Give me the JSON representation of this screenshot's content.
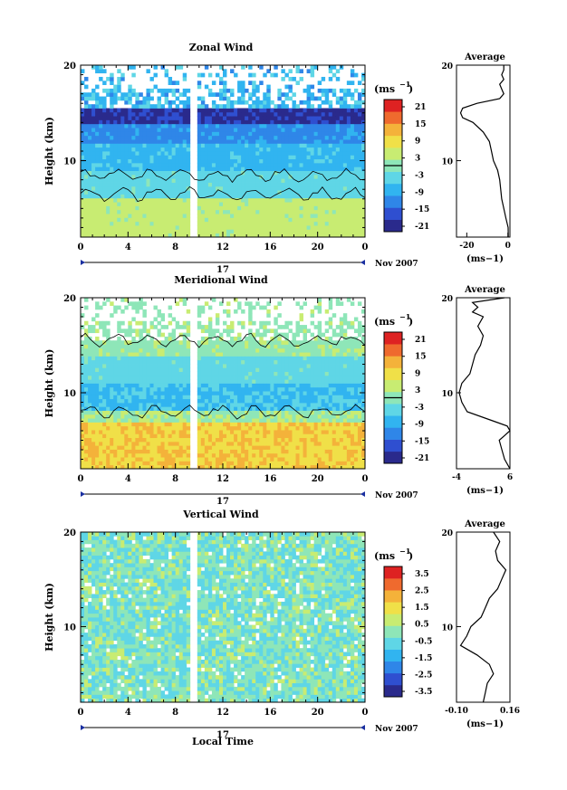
{
  "figure": {
    "date_label": "Nov 2007",
    "day_label": "17",
    "xlabel": "Local Time",
    "ylabel": "Height (km)",
    "unit_label": "(ms",
    "unit_exp": "−1"
  },
  "chart_data": [
    {
      "type": "heatmap",
      "title": "Zonal Wind",
      "xlabel": "",
      "ylabel": "Height (km)",
      "x_ticks": [
        "0",
        "4",
        "8",
        "12",
        "16",
        "20",
        "0"
      ],
      "y_ticks": [
        "20",
        "10"
      ],
      "xlim": [
        0,
        24
      ],
      "ylim": [
        2,
        20
      ],
      "colorbar": {
        "unit": "(ms−1)",
        "ticks": [
          "21",
          "15",
          "9",
          "3",
          "-3",
          "-9",
          "-15",
          "-21"
        ],
        "range": [
          -24,
          24
        ],
        "zero_line": true
      },
      "average_profile": {
        "title": "Average",
        "x_ticks": [
          "-20",
          "0"
        ],
        "xlim": [
          -25,
          1
        ],
        "xlabel": "(ms−1)",
        "y_ticks": [
          "20",
          "10"
        ],
        "height_km": [
          2,
          3,
          4,
          5,
          6,
          7,
          8,
          9,
          10,
          11,
          12,
          13,
          14,
          14.5,
          15,
          15.5,
          16,
          16.5,
          17,
          17.5,
          18,
          18.5,
          19,
          19.5,
          20
        ],
        "values": [
          0.2,
          0.1,
          -1,
          -2,
          -3,
          -3.5,
          -4,
          -5,
          -7,
          -8,
          -9,
          -12,
          -17,
          -22,
          -23,
          -22,
          -15,
          -4,
          -2,
          -3,
          -4,
          -2,
          -3,
          -2,
          -2
        ]
      }
    },
    {
      "type": "heatmap",
      "title": "Meridional Wind",
      "xlabel": "",
      "ylabel": "Height (km)",
      "x_ticks": [
        "0",
        "4",
        "8",
        "12",
        "16",
        "20",
        "0"
      ],
      "y_ticks": [
        "20",
        "10"
      ],
      "xlim": [
        0,
        24
      ],
      "ylim": [
        2,
        20
      ],
      "colorbar": {
        "unit": "(ms−1)",
        "ticks": [
          "21",
          "15",
          "9",
          "3",
          "-3",
          "-9",
          "-15",
          "-21"
        ],
        "range": [
          -24,
          24
        ],
        "zero_line": true
      },
      "average_profile": {
        "title": "Average",
        "x_ticks": [
          "-4",
          "6"
        ],
        "xlim": [
          -4,
          6
        ],
        "xlabel": "(ms−1)",
        "y_ticks": [
          "20",
          "10"
        ],
        "height_km": [
          2,
          3,
          4,
          5,
          5.5,
          6,
          6.5,
          7,
          8,
          9,
          10,
          11,
          12,
          13,
          14,
          15,
          16,
          17,
          18,
          18.5,
          19,
          19.5,
          20
        ],
        "values": [
          6,
          5,
          4.5,
          4,
          5,
          6,
          5.5,
          3,
          -2,
          -3,
          -3.5,
          -3,
          -1.5,
          -1,
          -0.5,
          0.5,
          1,
          0,
          1,
          -1,
          0,
          -1,
          5
        ]
      }
    },
    {
      "type": "heatmap",
      "title": "Vertical Wind",
      "xlabel": "Local Time",
      "ylabel": "Height (km)",
      "x_ticks": [
        "0",
        "4",
        "8",
        "12",
        "16",
        "20",
        "0"
      ],
      "y_ticks": [
        "20",
        "10"
      ],
      "xlim": [
        0,
        24
      ],
      "ylim": [
        2,
        20
      ],
      "colorbar": {
        "unit": "(ms−1)",
        "ticks": [
          "3.5",
          "2.5",
          "1.5",
          "0.5",
          "-0.5",
          "-1.5",
          "-2.5",
          "-3.5"
        ],
        "range": [
          -4,
          4
        ],
        "zero_line": false
      },
      "average_profile": {
        "title": "Average",
        "x_ticks": [
          "-0.10",
          "0.16"
        ],
        "xlim": [
          -0.1,
          0.16
        ],
        "xlabel": "(ms−1)",
        "y_ticks": [
          "20",
          "10"
        ],
        "height_km": [
          2,
          3,
          4,
          5,
          6,
          7,
          8,
          9,
          10,
          11,
          12,
          13,
          14,
          15,
          16,
          17,
          18,
          19,
          20
        ],
        "values": [
          0.03,
          0.04,
          0.05,
          0.08,
          0.06,
          0.0,
          -0.08,
          -0.05,
          -0.03,
          0.02,
          0.04,
          0.06,
          0.1,
          0.12,
          0.14,
          0.1,
          0.09,
          0.11,
          0.08
        ]
      }
    }
  ],
  "colors": {
    "palette": [
      "#2a2a8c",
      "#2f4fd0",
      "#2f86e8",
      "#31b4f0",
      "#5fd6e6",
      "#8ee6b8",
      "#c8ec72",
      "#f0e048",
      "#f4b23a",
      "#ef6a2e",
      "#de2222"
    ],
    "panel_bg": "#ffffff",
    "axis": "#000000"
  }
}
